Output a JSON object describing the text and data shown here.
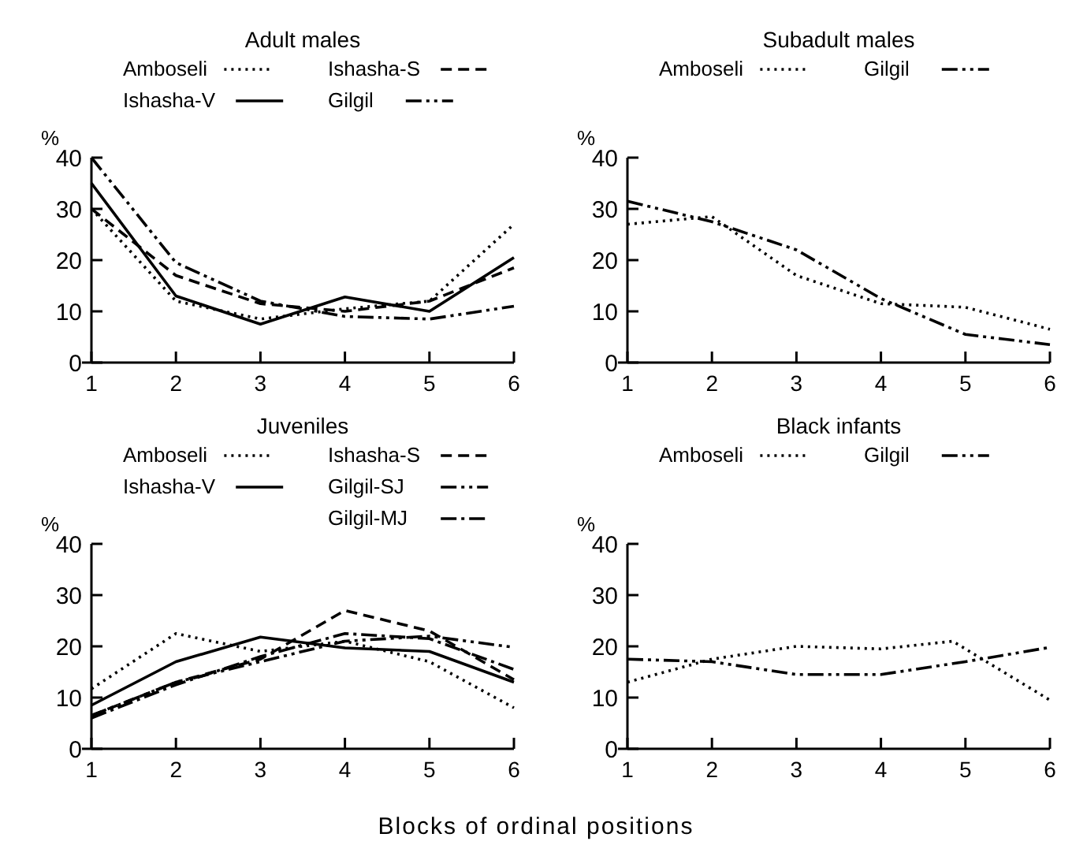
{
  "chart_data": [
    {
      "type": "line",
      "title": "Adult males",
      "ylabel": "%",
      "x": [
        1,
        2,
        3,
        4,
        5,
        6
      ],
      "xlim": [
        1,
        6
      ],
      "xticks": [
        1,
        2,
        3,
        4,
        5,
        6
      ],
      "ylim": [
        0,
        40
      ],
      "yticks": [
        0,
        10,
        20,
        30,
        40
      ],
      "legend": "top",
      "grid": false,
      "marker": "none",
      "series": [
        {
          "name": "Amboseli",
          "color": "#000000",
          "line_style": "dotted",
          "values": [
            30,
            12,
            8.5,
            10.5,
            12,
            27
          ]
        },
        {
          "name": "Ishasha-S",
          "color": "#000000",
          "line_style": "dashed",
          "values": [
            30,
            17,
            11.5,
            10,
            12,
            18.5
          ]
        },
        {
          "name": "Ishasha-V",
          "color": "#000000",
          "line_style": "solid",
          "values": [
            35,
            13,
            7.5,
            12.8,
            10,
            20.5
          ]
        },
        {
          "name": "Gilgil",
          "color": "#000000",
          "line_style": "dashdotdot",
          "values": [
            40,
            19.5,
            12,
            9,
            8.5,
            11
          ]
        }
      ]
    },
    {
      "type": "line",
      "title": "Subadult males",
      "ylabel": "%",
      "x": [
        1,
        2,
        3,
        4,
        5,
        6
      ],
      "xlim": [
        1,
        6
      ],
      "xticks": [
        1,
        2,
        3,
        4,
        5,
        6
      ],
      "ylim": [
        0,
        40
      ],
      "yticks": [
        0,
        10,
        20,
        30,
        40
      ],
      "legend": "top",
      "grid": false,
      "marker": "none",
      "series": [
        {
          "name": "Amboseli",
          "color": "#000000",
          "line_style": "dotted",
          "values": [
            27,
            28.5,
            17,
            11.5,
            10.8,
            6.5
          ]
        },
        {
          "name": "Gilgil",
          "color": "#000000",
          "line_style": "dashdotdot",
          "values": [
            31.5,
            27.5,
            22,
            12.5,
            5.5,
            3.5
          ]
        }
      ]
    },
    {
      "type": "line",
      "title": "Juveniles",
      "ylabel": "%",
      "xlabel": "Blocks of ordinal positions",
      "x": [
        1,
        2,
        3,
        4,
        5,
        6
      ],
      "xlim": [
        1,
        6
      ],
      "xticks": [
        1,
        2,
        3,
        4,
        5,
        6
      ],
      "ylim": [
        0,
        40
      ],
      "yticks": [
        0,
        10,
        20,
        30,
        40
      ],
      "legend": "top",
      "grid": false,
      "marker": "none",
      "series": [
        {
          "name": "Amboseli",
          "color": "#000000",
          "line_style": "dotted",
          "values": [
            11.7,
            22.5,
            19,
            21,
            17,
            8
          ]
        },
        {
          "name": "Ishasha-S",
          "color": "#000000",
          "line_style": "dashed",
          "values": [
            6.5,
            13,
            17.5,
            27,
            23,
            13.5
          ]
        },
        {
          "name": "Ishasha-V",
          "color": "#000000",
          "line_style": "solid",
          "values": [
            8.5,
            17,
            21.8,
            19.7,
            19,
            13
          ]
        },
        {
          "name": "Gilgil-SJ",
          "color": "#000000",
          "line_style": "dashdotdot",
          "values": [
            6.5,
            13,
            17,
            21,
            22,
            19.8
          ]
        },
        {
          "name": "Gilgil-MJ",
          "color": "#000000",
          "line_style": "dashdot",
          "values": [
            6,
            12.5,
            18,
            22.5,
            21.5,
            15.5
          ]
        }
      ]
    },
    {
      "type": "line",
      "title": "Black infants",
      "ylabel": "%",
      "x": [
        1,
        2,
        3,
        4,
        5,
        6
      ],
      "xlim": [
        1,
        6
      ],
      "xticks": [
        1,
        2,
        3,
        4,
        5,
        6
      ],
      "ylim": [
        0,
        40
      ],
      "yticks": [
        0,
        10,
        20,
        30,
        40
      ],
      "legend": "top",
      "grid": false,
      "marker": "none",
      "series": [
        {
          "name": "Amboseli",
          "color": "#000000",
          "line_style": "dotted",
          "x": [
            1,
            2,
            3,
            4,
            4.85,
            6
          ],
          "values": [
            13,
            17.5,
            20,
            19.5,
            21,
            9.5
          ]
        },
        {
          "name": "Gilgil",
          "color": "#000000",
          "line_style": "dashdotdot",
          "values": [
            17.5,
            17,
            14.5,
            14.5,
            17,
            19.8
          ]
        }
      ]
    }
  ]
}
